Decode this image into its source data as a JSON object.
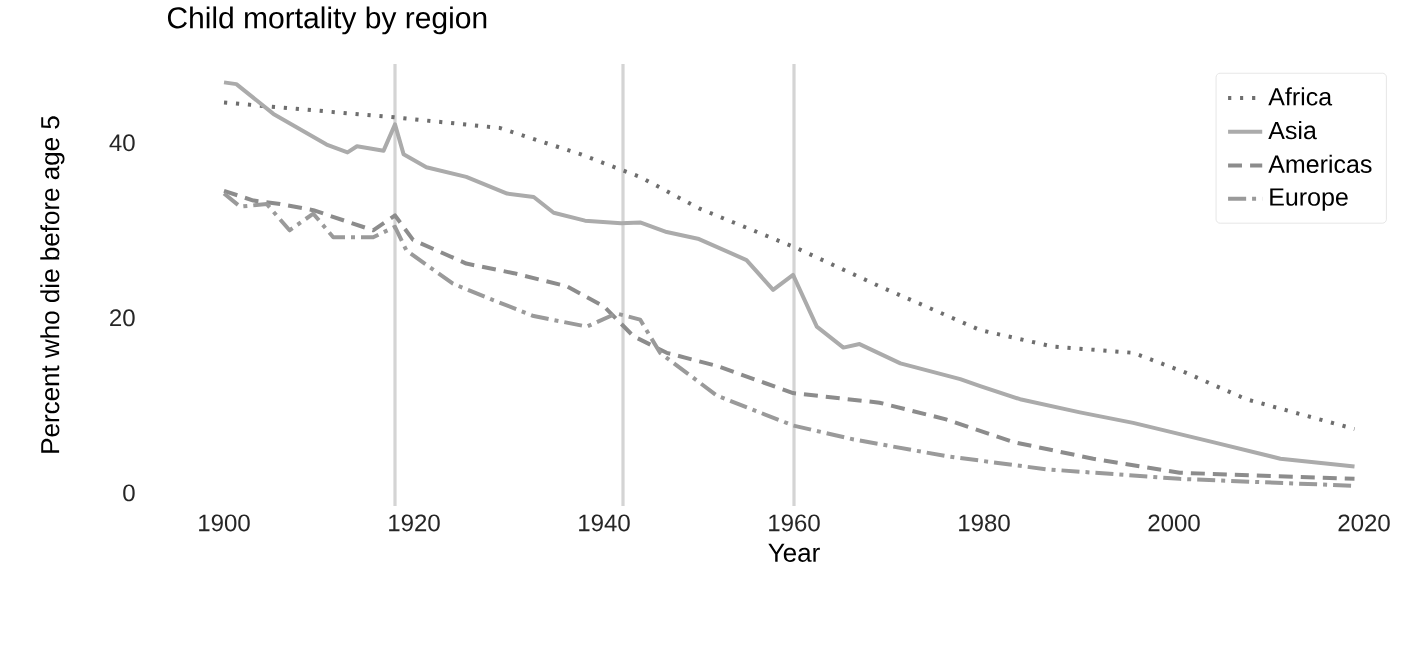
{
  "chart_data": {
    "type": "line",
    "title": "Child mortality by region",
    "xlabel": "Year",
    "ylabel": "Percent who die before age 5",
    "xlim": [
      1900,
      2020
    ],
    "ylim": [
      -1.5,
      49
    ],
    "xticks": [
      1900,
      1920,
      1940,
      1960,
      1980,
      2000,
      2020
    ],
    "yticks": [
      0,
      20,
      40
    ],
    "grid": false,
    "legend": "top right",
    "marker": "none",
    "ref_lines": [
      {
        "axis": "x",
        "value": 1918,
        "color": "#d4d4d4"
      },
      {
        "axis": "x",
        "value": 1942,
        "color": "#d4d4d4"
      },
      {
        "axis": "x",
        "value": 1960,
        "color": "#d4d4d4"
      }
    ],
    "series": [
      {
        "name": "Africa",
        "color": "#6e6e6e",
        "line_style": "dotted",
        "x": [
          1900,
          1918,
          1929,
          1937.5,
          1943.8,
          1950,
          1960,
          1969,
          1979.6,
          1987.3,
          1995.7,
          2001.3,
          2007.6,
          2019
        ],
        "values": [
          44.6,
          42.9,
          41.7,
          38.7,
          36.1,
          32.5,
          28.1,
          23.6,
          18.6,
          16.7,
          16.0,
          13.7,
          10.7,
          7.3
        ]
      },
      {
        "name": "Asia",
        "color": "#ababab",
        "line_style": "solid",
        "x": [
          1900,
          1901.3,
          1905.2,
          1910.8,
          1913,
          1914,
          1916.8,
          1918,
          1918.9,
          1921.3,
          1925.5,
          1929.8,
          1932.6,
          1934.7,
          1938,
          1941.8,
          1943.8,
          1946.6,
          1950,
          1955,
          1957.8,
          1959.9,
          1962.4,
          1965.2,
          1966.9,
          1971.2,
          1977.5,
          1979.6,
          1983.8,
          1990.1,
          1995.7,
          2004.1,
          2011.2,
          2019
        ],
        "values": [
          46.9,
          46.7,
          43.3,
          39.8,
          38.9,
          39.6,
          39.1,
          42.1,
          38.7,
          37.2,
          36.1,
          34.2,
          33.8,
          32.0,
          31.1,
          30.8,
          30.9,
          29.8,
          29.0,
          26.6,
          23.2,
          24.9,
          19.0,
          16.6,
          17.0,
          14.8,
          13.0,
          12.2,
          10.7,
          9.2,
          8.0,
          5.8,
          3.9,
          3.0
        ]
      },
      {
        "name": "Americas",
        "color": "#8c8c8c",
        "line_style": "dashed",
        "x": [
          1900,
          1903.1,
          1905.9,
          1909.4,
          1915.7,
          1918,
          1919.9,
          1925.5,
          1930.5,
          1936.1,
          1940,
          1943.1,
          1946.6,
          1951.9,
          1959.9,
          1969,
          1976,
          1983.1,
          1991.5,
          2000.6,
          2019
        ],
        "values": [
          34.5,
          33.4,
          33.0,
          32.3,
          30.0,
          31.7,
          28.9,
          26.2,
          25.1,
          23.6,
          21.3,
          17.9,
          16.0,
          14.5,
          11.4,
          10.3,
          8.4,
          5.8,
          3.9,
          2.3,
          1.6
        ]
      },
      {
        "name": "Europe",
        "color": "#9a9a9a",
        "line_style": "dashdot",
        "x": [
          1900,
          1901.7,
          1904.5,
          1906.9,
          1909.4,
          1911.5,
          1915.7,
          1918,
          1919.2,
          1924.1,
          1928.4,
          1932.6,
          1938.2,
          1941.3,
          1943.8,
          1945.9,
          1951.9,
          1959.9,
          1966.3,
          1976,
          1986.5,
          2000.6,
          2019
        ],
        "values": [
          34.2,
          32.7,
          33.0,
          30.0,
          31.9,
          29.2,
          29.2,
          30.4,
          27.7,
          23.9,
          22.0,
          20.2,
          19.0,
          20.5,
          19.8,
          16.0,
          11.1,
          7.7,
          6.1,
          4.2,
          2.7,
          1.6,
          0.8
        ]
      }
    ]
  }
}
